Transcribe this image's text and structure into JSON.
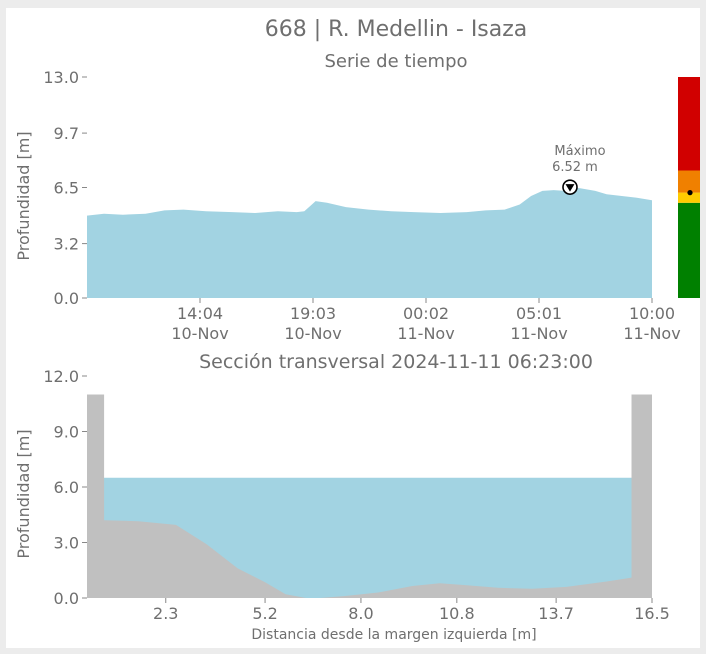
{
  "title": "668 | R. Medellin - Isaza",
  "chart_data": [
    {
      "type": "area",
      "title": "Serie de tiempo",
      "ylabel": "Profundidad [m]",
      "xlabel": "",
      "ylim": [
        0.0,
        13.0
      ],
      "yticks": [
        "0.0",
        "3.2",
        "6.5",
        "9.7",
        "13.0"
      ],
      "xlim": [
        "2024-11-10 09:05",
        "2024-11-11 10:00"
      ],
      "xticks": [
        {
          "time": "2024-11-10 14:04",
          "line1": "14:04",
          "line2": "10-Nov"
        },
        {
          "time": "2024-11-10 19:03",
          "line1": "19:03",
          "line2": "10-Nov"
        },
        {
          "time": "2024-11-11 00:02",
          "line1": "00:02",
          "line2": "11-Nov"
        },
        {
          "time": "2024-11-11 05:01",
          "line1": "05:01",
          "line2": "11-Nov"
        },
        {
          "time": "2024-11-11 10:00",
          "line1": "10:00",
          "line2": "11-Nov"
        }
      ],
      "x": [
        "2024-11-10 09:05",
        "2024-11-10 09:50",
        "2024-11-10 10:40",
        "2024-11-10 11:40",
        "2024-11-10 12:30",
        "2024-11-10 13:20",
        "2024-11-10 14:20",
        "2024-11-10 15:30",
        "2024-11-10 16:30",
        "2024-11-10 17:30",
        "2024-11-10 18:20",
        "2024-11-10 18:40",
        "2024-11-10 19:00",
        "2024-11-10 19:10",
        "2024-11-10 19:40",
        "2024-11-10 20:30",
        "2024-11-10 21:30",
        "2024-11-10 22:30",
        "2024-11-10 23:30",
        "2024-11-11 00:40",
        "2024-11-11 01:50",
        "2024-11-11 02:40",
        "2024-11-11 03:30",
        "2024-11-11 04:10",
        "2024-11-11 04:40",
        "2024-11-11 05:10",
        "2024-11-11 05:40",
        "2024-11-11 06:10",
        "2024-11-11 06:23",
        "2024-11-11 06:50",
        "2024-11-11 07:30",
        "2024-11-11 08:00",
        "2024-11-11 08:40",
        "2024-11-11 09:20",
        "2024-11-11 10:00"
      ],
      "y": [
        4.85,
        4.95,
        4.9,
        4.95,
        5.15,
        5.2,
        5.1,
        5.05,
        5.0,
        5.1,
        5.05,
        5.1,
        5.5,
        5.7,
        5.6,
        5.35,
        5.2,
        5.1,
        5.05,
        5.0,
        5.05,
        5.15,
        5.2,
        5.5,
        6.0,
        6.3,
        6.35,
        6.3,
        6.52,
        6.45,
        6.3,
        6.1,
        6.0,
        5.9,
        5.75
      ],
      "fill_color": "#a2d3e2",
      "annotation": {
        "label": "Máximo",
        "value": "6.52 m",
        "time": "2024-11-11 06:23",
        "depth": 6.52
      },
      "alert_bar": {
        "current_depth": 6.2,
        "levels": [
          {
            "from": 0.0,
            "to": 5.6,
            "color": "#008000"
          },
          {
            "from": 5.6,
            "to": 6.2,
            "color": "#ffcc00"
          },
          {
            "from": 6.2,
            "to": 7.5,
            "color": "#f08000"
          },
          {
            "from": 7.5,
            "to": 13.0,
            "color": "#d10000"
          }
        ]
      }
    },
    {
      "type": "area",
      "title": "Sección transversal 2024-11-11 06:23:00",
      "xlabel": "Distancia desde la margen izquierda [m]",
      "ylabel": "Profundidad [m]",
      "xlim": [
        0.0,
        16.5
      ],
      "ylim": [
        0.0,
        12.0
      ],
      "xticks": [
        "2.3",
        "5.2",
        "8.0",
        "10.8",
        "13.7",
        "16.5"
      ],
      "yticks": [
        "0.0",
        "3.0",
        "6.0",
        "9.0",
        "12.0"
      ],
      "water_level": 6.5,
      "bank_top": 11.0,
      "bed_x": [
        0.0,
        0.5,
        0.5,
        1.5,
        2.6,
        3.5,
        4.4,
        5.2,
        5.8,
        6.4,
        6.8,
        7.5,
        8.5,
        9.5,
        10.3,
        11.0,
        12.0,
        13.0,
        14.0,
        15.2,
        15.9,
        15.9,
        16.5
      ],
      "bed_y": [
        11.0,
        11.0,
        4.2,
        4.15,
        3.95,
        2.9,
        1.6,
        0.85,
        0.2,
        0.0,
        0.0,
        0.1,
        0.3,
        0.65,
        0.8,
        0.7,
        0.55,
        0.5,
        0.6,
        0.9,
        1.1,
        11.0,
        11.0
      ],
      "water_color": "#a2d3e2",
      "bed_color": "#c0c0c0"
    }
  ]
}
